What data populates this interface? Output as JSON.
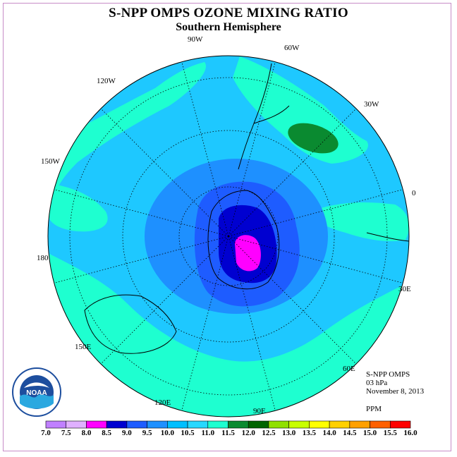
{
  "header": {
    "title": "S-NPP OMPS OZONE MIXING RATIO",
    "subtitle": "Southern Hemisphere"
  },
  "longitude_labels": [
    "90W",
    "60W",
    "30W",
    "0",
    "30E",
    "60E",
    "90E",
    "120E",
    "150E",
    "180",
    "150W",
    "120W"
  ],
  "info": {
    "instrument": "S-NPP OMPS",
    "pressure": "03 hPa",
    "date": "November 8, 2013",
    "units": "PPM"
  },
  "logo": {
    "text": "NOAA"
  },
  "colorbar": {
    "ticks": [
      "7.0",
      "7.5",
      "8.0",
      "8.5",
      "9.0",
      "9.5",
      "10.0",
      "10.5",
      "11.0",
      "11.5",
      "12.0",
      "12.5",
      "13.0",
      "13.5",
      "14.0",
      "14.5",
      "15.0",
      "15.5",
      "16.0"
    ],
    "colors": [
      "#c080ff",
      "#e0b0ff",
      "#ff00ff",
      "#0000d0",
      "#1e5cff",
      "#1e90ff",
      "#00bfff",
      "#28d8ff",
      "#1effd0",
      "#0a8a30",
      "#006400",
      "#90e000",
      "#c8ff00",
      "#ffff00",
      "#ffd000",
      "#ffa000",
      "#ff6000",
      "#ff0000",
      "#8b4513"
    ]
  },
  "map_colors": {
    "background": "#1ec8ff",
    "band_light": "#1effd0",
    "ring_mid": "#1e90ff",
    "ring_inner": "#1e5cff",
    "core": "#0000d0",
    "peak": "#ff00ff",
    "green_patch": "#0a8a30"
  }
}
